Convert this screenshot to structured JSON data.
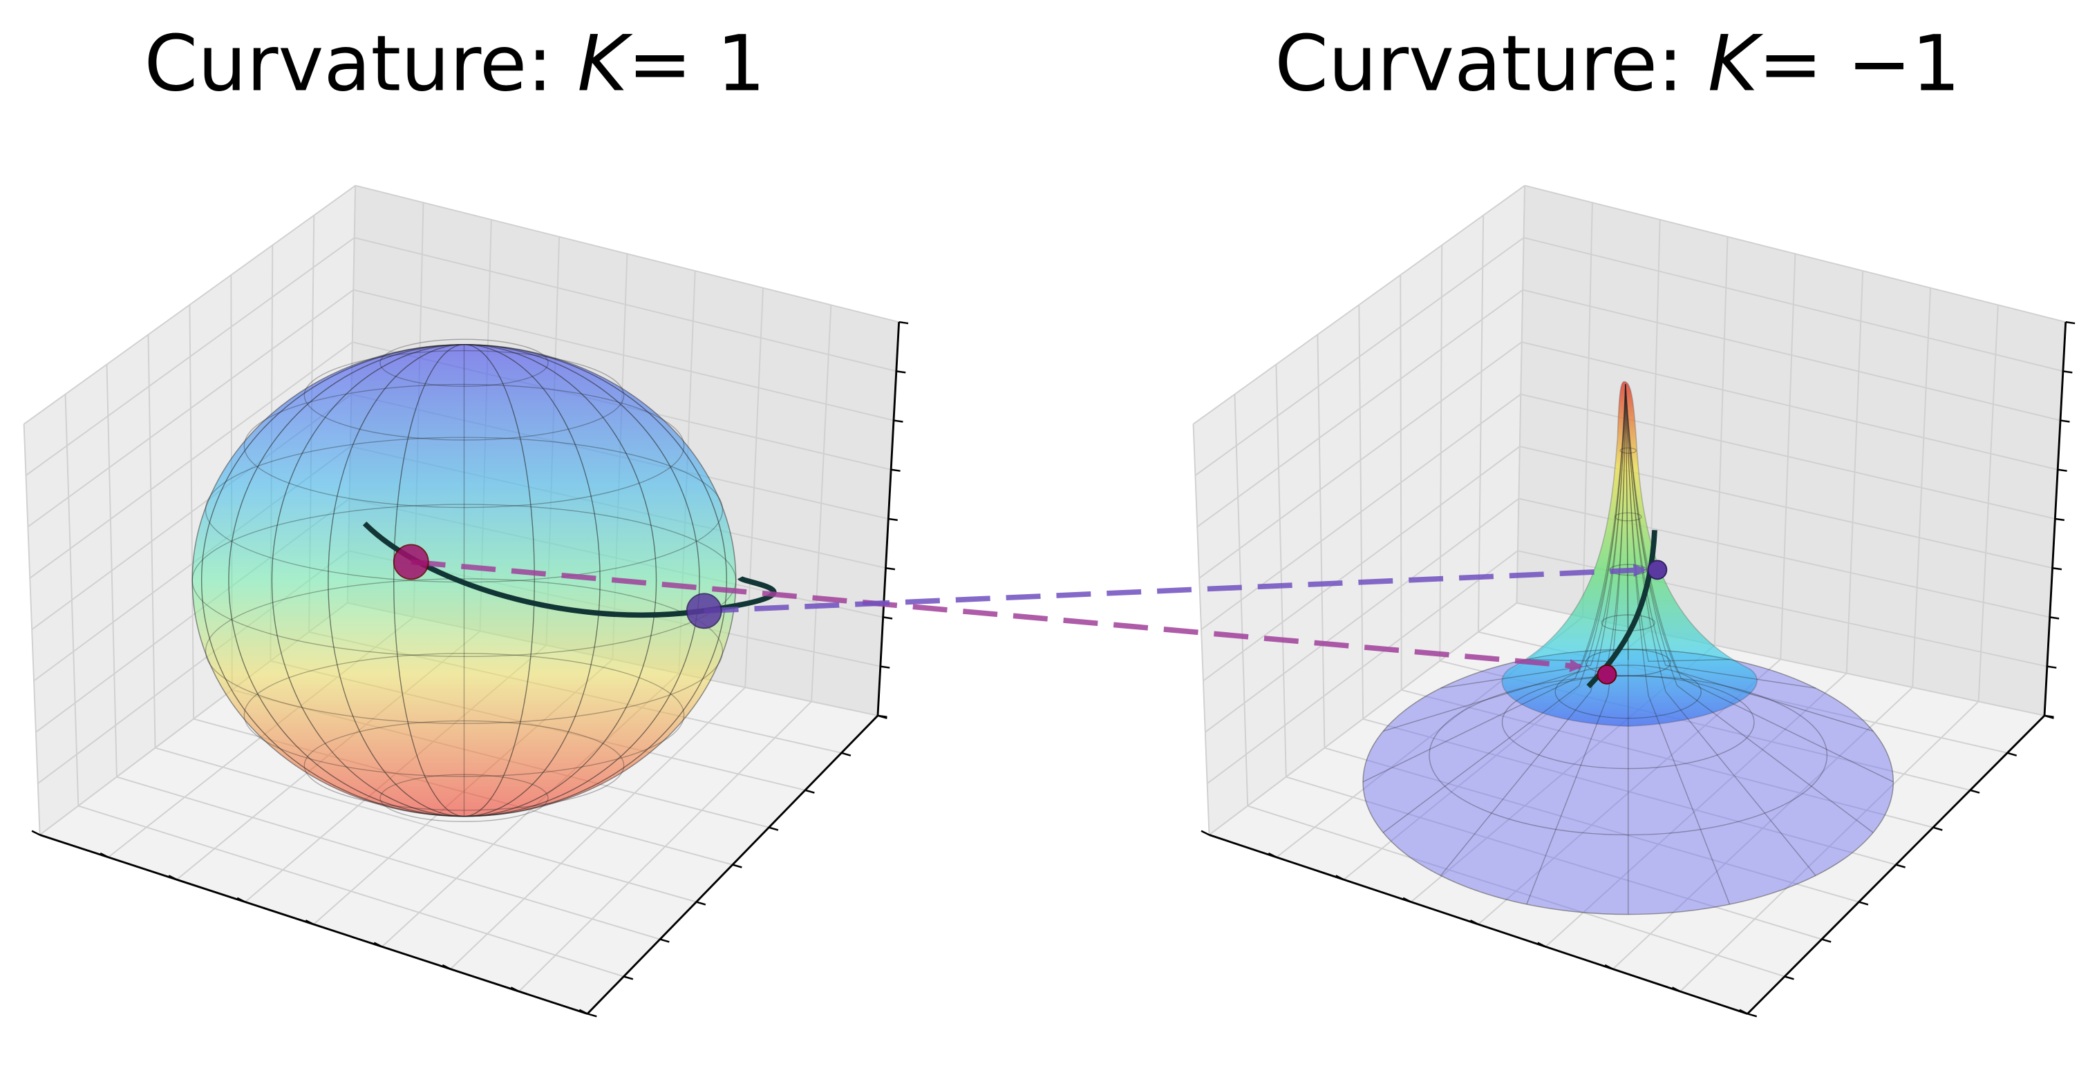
{
  "panels": [
    {
      "title": {
        "prefix": "Curvature: ",
        "symbol": "K",
        "value": "= 1"
      }
    },
    {
      "title": {
        "prefix": "Curvature: ",
        "symbol": "K",
        "value": "= −1"
      }
    }
  ]
}
